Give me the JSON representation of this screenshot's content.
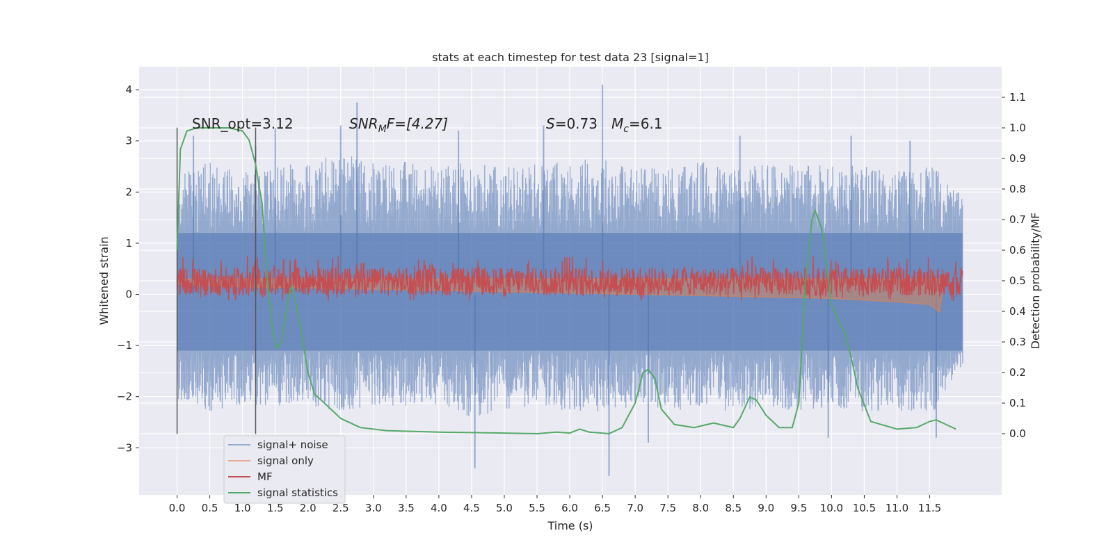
{
  "chart_data": {
    "type": "line",
    "title": "stats at each timestep for test data 23 [signal=1]",
    "xlabel": "Time (s)",
    "ylabel_left": "Whitened strain",
    "ylabel_right": "Detection probability/MF",
    "xlim": [
      -0.58,
      12.6
    ],
    "ylim_left": [
      -3.92,
      4.45
    ],
    "ylim_right": [
      -0.2,
      1.2
    ],
    "x_ticks": [
      0.0,
      0.5,
      1.0,
      1.5,
      2.0,
      2.5,
      3.0,
      3.5,
      4.0,
      4.5,
      5.0,
      5.5,
      6.0,
      6.5,
      7.0,
      7.5,
      8.0,
      8.5,
      9.0,
      9.5,
      10.0,
      10.5,
      11.0,
      11.5
    ],
    "x_tick_labels": [
      "0.0",
      "0.5",
      "1.0",
      "1.5",
      "2.0",
      "2.5",
      "3.0",
      "3.5",
      "4.0",
      "4.5",
      "5.0",
      "5.5",
      "6.0",
      "6.5",
      "7.0",
      "7.5",
      "8.0",
      "8.5",
      "9.0",
      "9.5",
      "10.0",
      "10.5",
      "11.0",
      "11.5"
    ],
    "y_left_ticks": [
      -3,
      -2,
      -1,
      0,
      1,
      2,
      3,
      4
    ],
    "y_left_tick_labels": [
      "−3",
      "−2",
      "−1",
      "0",
      "1",
      "2",
      "3",
      "4"
    ],
    "y_right_ticks": [
      0.0,
      0.1,
      0.2,
      0.3,
      0.4,
      0.5,
      0.6,
      0.7,
      0.8,
      0.9,
      1.0,
      1.1
    ],
    "y_right_tick_labels": [
      "0.0",
      "0.1",
      "0.2",
      "0.3",
      "0.4",
      "0.5",
      "0.6",
      "0.7",
      "0.8",
      "0.9",
      "1.0",
      "1.1"
    ],
    "grid": true,
    "legend_position": "lower-left",
    "annotations": {
      "snr_opt": "SNR_opt=3.12",
      "snr_mf_label": "SNR",
      "snr_mf_sub": "M",
      "snr_mf_tail": "F=[4.27]",
      "s_label": "S",
      "s_value": "=0.73",
      "mc_label": "M",
      "mc_sub": "c",
      "mc_value": "=6.1"
    },
    "vlines": [
      0.0,
      1.2
    ],
    "vline_range": [
      -2.73,
      3.26
    ],
    "series": [
      {
        "name": "signal+ noise",
        "color": "#4c72b0",
        "axis": "left",
        "x_range": [
          0.0,
          12.0
        ],
        "envelope_upper": [
          [
            0,
            2.3
          ],
          [
            0.5,
            2.6
          ],
          [
            1.0,
            2.5
          ],
          [
            1.5,
            2.5
          ],
          [
            2.0,
            2.6
          ],
          [
            2.5,
            2.8
          ],
          [
            3.0,
            2.6
          ],
          [
            3.5,
            2.6
          ],
          [
            4.0,
            2.5
          ],
          [
            4.5,
            2.6
          ],
          [
            5.0,
            2.5
          ],
          [
            5.5,
            2.6
          ],
          [
            6.0,
            2.6
          ],
          [
            6.5,
            2.7
          ],
          [
            7.0,
            2.5
          ],
          [
            7.5,
            2.5
          ],
          [
            8.0,
            2.6
          ],
          [
            8.5,
            2.5
          ],
          [
            9.0,
            2.6
          ],
          [
            9.5,
            2.5
          ],
          [
            10.0,
            2.6
          ],
          [
            10.5,
            2.5
          ],
          [
            11.0,
            2.4
          ],
          [
            11.5,
            2.6
          ],
          [
            12.0,
            1.9
          ]
        ],
        "envelope_lower": [
          [
            0,
            -2.1
          ],
          [
            0.5,
            -2.3
          ],
          [
            1.0,
            -2.2
          ],
          [
            1.5,
            -2.2
          ],
          [
            2.0,
            -2.2
          ],
          [
            2.5,
            -2.3
          ],
          [
            3.0,
            -2.2
          ],
          [
            3.5,
            -2.2
          ],
          [
            4.0,
            -2.2
          ],
          [
            4.5,
            -2.4
          ],
          [
            5.0,
            -2.3
          ],
          [
            5.5,
            -2.2
          ],
          [
            6.0,
            -2.3
          ],
          [
            6.5,
            -2.3
          ],
          [
            7.0,
            -2.2
          ],
          [
            7.5,
            -2.3
          ],
          [
            8.0,
            -2.2
          ],
          [
            8.5,
            -2.3
          ],
          [
            9.0,
            -2.2
          ],
          [
            9.5,
            -2.3
          ],
          [
            10.0,
            -2.2
          ],
          [
            10.5,
            -2.3
          ],
          [
            11.0,
            -2.3
          ],
          [
            11.5,
            -2.4
          ],
          [
            12.0,
            -1.4
          ]
        ],
        "spikes": [
          [
            0.25,
            3.1
          ],
          [
            1.2,
            2.9
          ],
          [
            1.5,
            3.25
          ],
          [
            2.5,
            3.3
          ],
          [
            2.75,
            3.75
          ],
          [
            4.3,
            3.2
          ],
          [
            5.6,
            3.3
          ],
          [
            6.5,
            4.1
          ],
          [
            8.6,
            3.1
          ],
          [
            10.3,
            3.1
          ],
          [
            11.2,
            3.0
          ],
          [
            4.55,
            -3.4
          ],
          [
            6.6,
            -3.55
          ],
          [
            7.2,
            -2.9
          ],
          [
            9.95,
            -2.8
          ],
          [
            11.6,
            -2.8
          ]
        ]
      },
      {
        "name": "signal only",
        "color": "#dd8452",
        "axis": "left",
        "points": [
          [
            0,
            0.2
          ],
          [
            1,
            0.15
          ],
          [
            3,
            0.1
          ],
          [
            5,
            0.05
          ],
          [
            7,
            0.0
          ],
          [
            9,
            -0.05
          ],
          [
            10,
            -0.08
          ],
          [
            11,
            -0.15
          ],
          [
            11.5,
            -0.2
          ],
          [
            11.65,
            -0.35
          ],
          [
            11.7,
            0.1
          ]
        ]
      },
      {
        "name": "MF",
        "color": "#c44e52",
        "axis": "left",
        "center": 0.25,
        "band": [
          -0.15,
          0.78
        ]
      },
      {
        "name": "signal statistics",
        "color": "#55a868",
        "axis": "right",
        "points": [
          [
            0.0,
            0.6
          ],
          [
            0.05,
            0.93
          ],
          [
            0.15,
            0.99
          ],
          [
            0.3,
            1.0
          ],
          [
            0.8,
            1.0
          ],
          [
            1.0,
            0.99
          ],
          [
            1.1,
            0.96
          ],
          [
            1.2,
            0.88
          ],
          [
            1.3,
            0.75
          ],
          [
            1.38,
            0.5
          ],
          [
            1.45,
            0.35
          ],
          [
            1.52,
            0.28
          ],
          [
            1.6,
            0.3
          ],
          [
            1.7,
            0.45
          ],
          [
            1.75,
            0.48
          ],
          [
            1.8,
            0.44
          ],
          [
            1.9,
            0.33
          ],
          [
            2.0,
            0.2
          ],
          [
            2.1,
            0.13
          ],
          [
            2.3,
            0.09
          ],
          [
            2.5,
            0.05
          ],
          [
            2.8,
            0.02
          ],
          [
            3.2,
            0.01
          ],
          [
            4.0,
            0.005
          ],
          [
            5.0,
            0.002
          ],
          [
            5.5,
            0.0
          ],
          [
            5.8,
            0.005
          ],
          [
            6.0,
            0.002
          ],
          [
            6.15,
            0.015
          ],
          [
            6.3,
            0.005
          ],
          [
            6.6,
            0.0
          ],
          [
            6.8,
            0.02
          ],
          [
            7.0,
            0.1
          ],
          [
            7.12,
            0.2
          ],
          [
            7.2,
            0.21
          ],
          [
            7.3,
            0.18
          ],
          [
            7.4,
            0.08
          ],
          [
            7.6,
            0.03
          ],
          [
            7.9,
            0.02
          ],
          [
            8.2,
            0.035
          ],
          [
            8.5,
            0.02
          ],
          [
            8.6,
            0.05
          ],
          [
            8.75,
            0.12
          ],
          [
            8.85,
            0.11
          ],
          [
            9.0,
            0.06
          ],
          [
            9.2,
            0.02
          ],
          [
            9.4,
            0.02
          ],
          [
            9.5,
            0.1
          ],
          [
            9.6,
            0.5
          ],
          [
            9.7,
            0.7
          ],
          [
            9.75,
            0.73
          ],
          [
            9.85,
            0.67
          ],
          [
            10.0,
            0.42
          ],
          [
            10.2,
            0.33
          ],
          [
            10.3,
            0.25
          ],
          [
            10.4,
            0.15
          ],
          [
            10.6,
            0.04
          ],
          [
            11.0,
            0.015
          ],
          [
            11.3,
            0.02
          ],
          [
            11.5,
            0.04
          ],
          [
            11.6,
            0.045
          ],
          [
            11.7,
            0.035
          ],
          [
            11.9,
            0.015
          ]
        ]
      }
    ]
  }
}
